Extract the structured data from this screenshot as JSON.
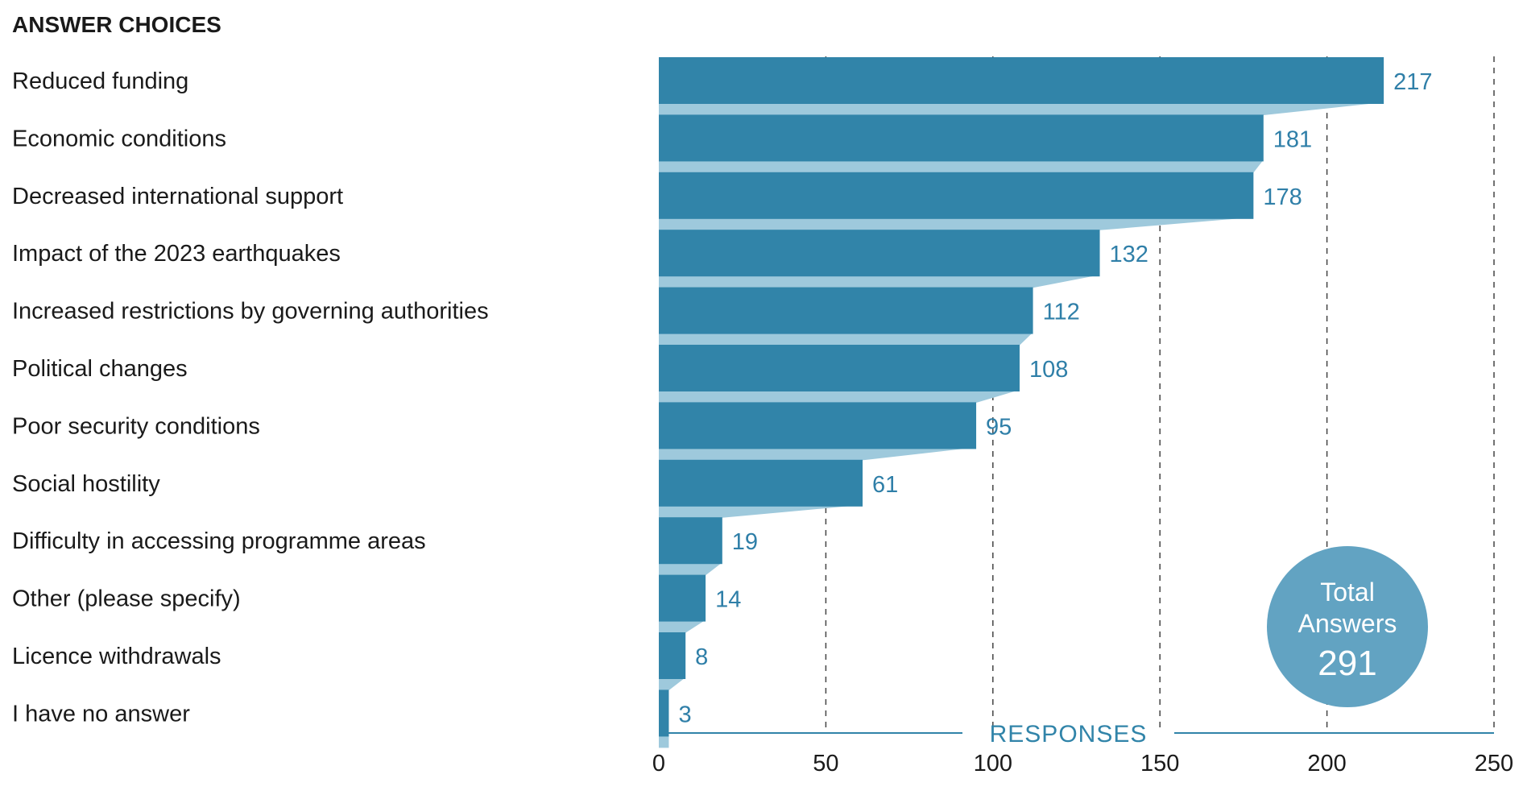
{
  "header": {
    "title": "ANSWER CHOICES"
  },
  "colors": {
    "bar": "#3184a9",
    "bar_shadow": "#9ec9dc",
    "value_text": "#2f7fa8",
    "axis": "#3184a9",
    "badge": "#62a3c2",
    "text": "#1a1a1a"
  },
  "chart_data": {
    "type": "bar",
    "orientation": "horizontal",
    "xlabel": "RESPONSES",
    "xlim": [
      0,
      250
    ],
    "xticks": [
      0,
      50,
      100,
      150,
      200,
      250
    ],
    "grid": "vertical dashed",
    "categories": [
      "Reduced funding",
      "Economic conditions",
      "Decreased international support",
      "Impact of the 2023 earthquakes",
      "Increased restrictions by governing authorities",
      "Political changes",
      "Poor security conditions",
      "Social hostility",
      "Difficulty in accessing programme areas",
      "Other (please specify)",
      "Licence withdrawals",
      "I have no answer"
    ],
    "values": [
      217,
      181,
      178,
      132,
      112,
      108,
      95,
      61,
      19,
      14,
      8,
      3
    ]
  },
  "badge": {
    "line1": "Total",
    "line2": "Answers",
    "value": "291"
  }
}
